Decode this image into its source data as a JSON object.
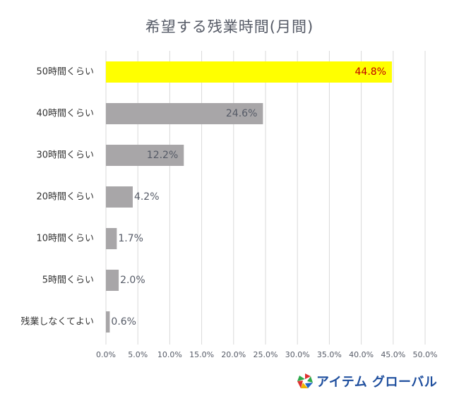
{
  "chart_data": {
    "type": "bar",
    "orientation": "horizontal",
    "title": "希望する残業時間(月間)",
    "categories": [
      "50時間くらい",
      "40時間くらい",
      "30時間くらい",
      "20時間くらい",
      "10時間くらい",
      "5時間くらい",
      "残業しなくてよい"
    ],
    "values": [
      44.8,
      24.6,
      12.2,
      4.2,
      1.7,
      2.0,
      0.6
    ],
    "value_labels": [
      "44.8%",
      "24.6%",
      "12.2%",
      "4.2%",
      "1.7%",
      "2.0%",
      "0.6%"
    ],
    "highlight_index": 0,
    "xlim": [
      0,
      50
    ],
    "x_ticks": [
      "0.0%",
      "5.0%",
      "10.0%",
      "15.0%",
      "20.0%",
      "25.0%",
      "30.0%",
      "35.0%",
      "40.0%",
      "45.0%",
      "50.0%"
    ],
    "grid": true,
    "colors": {
      "highlight_bar": "#ffff00",
      "highlight_label": "#c00000",
      "bar": "#a8a6a8",
      "label": "#555a66",
      "grid": "#d9d9d9"
    }
  },
  "logo": {
    "text": "アイテム グローバル",
    "colors": [
      "#e03030",
      "#2ea84a",
      "#1f63c6",
      "#f0b400"
    ]
  }
}
